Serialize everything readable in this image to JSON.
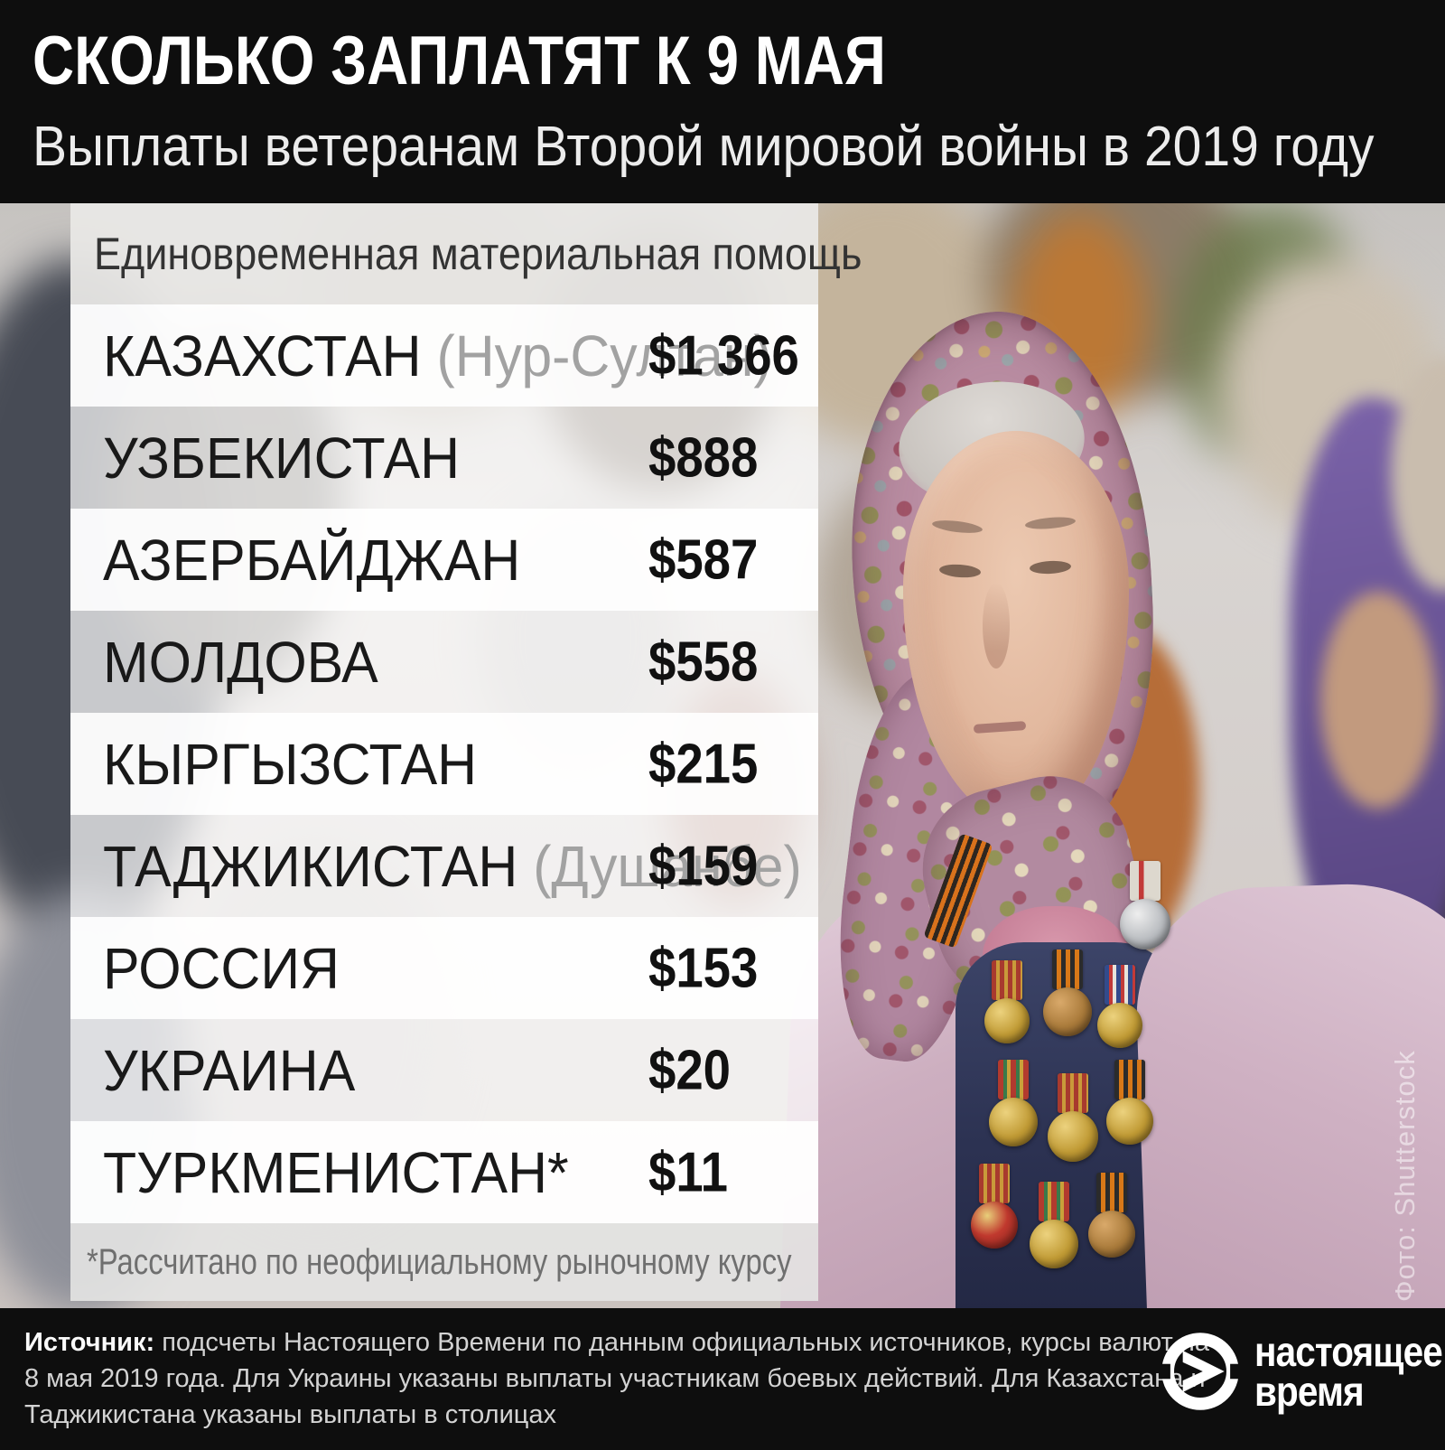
{
  "masthead": {
    "title": "СКОЛЬКО ЗАПЛАТЯТ К 9 МАЯ",
    "subtitle": "Выплаты ветеранам Второй мировой войны в 2019 году"
  },
  "table": {
    "header": "Единовременная материальная помощь",
    "rows": [
      {
        "country": "КАЗАХСТАН",
        "city": "(Нур-Султан)",
        "amount": "$1 366"
      },
      {
        "country": "УЗБЕКИСТАН",
        "city": "",
        "amount": "$888"
      },
      {
        "country": "АЗЕРБАЙДЖАН",
        "city": "",
        "amount": "$587"
      },
      {
        "country": "МОЛДОВА",
        "city": "",
        "amount": "$558"
      },
      {
        "country": "КЫРГЫЗСТАН",
        "city": "",
        "amount": "$215"
      },
      {
        "country": "ТАДЖИКИСТАН",
        "city": "(Душанбе)",
        "amount": "$159"
      },
      {
        "country": "РОССИЯ",
        "city": "",
        "amount": "$153"
      },
      {
        "country": "УКРАИНА",
        "city": "",
        "amount": "$20"
      },
      {
        "country": "ТУРКМЕНИСТАН*",
        "city": "",
        "amount": "$11"
      }
    ],
    "footnote": "*Рассчитано по неофициальному рыночному курсу"
  },
  "footer": {
    "source_label": "Источник:",
    "source_rest": " подсчеты Настоящего Времени по данным официальных источников, курсы валют на\n8 мая 2019 года. Для Украины указаны выплаты участникам боевых действий. Для Казахстана и\nТаджикистана указаны выплаты в столицах",
    "logo": {
      "line1": "настоящее",
      "line2": "время",
      "icon": "play-circle-icon"
    }
  },
  "photo_credit": "Фото: Shutterstock",
  "colors": {
    "bar_black": "#0e0e0e",
    "title_white": "#ffffff",
    "header_strip_gray": "#e9e8e6",
    "row_text_dark": "#191919",
    "city_note_gray": "#a2a2a2",
    "amount_black": "#111111",
    "footnote_gray": "#6f6f6f",
    "source_text_gray": "#d3d3d3"
  },
  "chart_data": {
    "type": "table",
    "title": "Единовременная материальная помощь",
    "subtitle": "Выплаты ветеранам Второй мировой войны в 2019 году",
    "categories": [
      "Казахстан (Нур-Султан)",
      "Узбекистан",
      "Азербайджан",
      "Молдова",
      "Кыргызстан",
      "Таджикистан (Душанбе)",
      "Россия",
      "Украина",
      "Туркменистан*"
    ],
    "values": [
      1366,
      888,
      587,
      558,
      215,
      159,
      153,
      20,
      11
    ],
    "unit": "USD",
    "footnote": "*Рассчитано по неофициальному рыночному курсу"
  }
}
